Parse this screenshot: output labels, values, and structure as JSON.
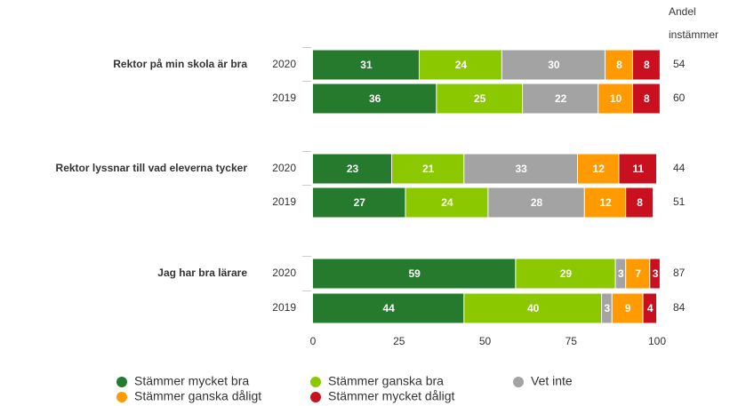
{
  "chart_data": {
    "type": "bar",
    "groups": [
      "Rektor på min skola är bra",
      "Rektor lyssnar till vad eleverna tycker",
      "Jag har bra lärare"
    ],
    "categories": [
      "2020",
      "2019",
      "2020",
      "2019",
      "2020",
      "2019"
    ],
    "series": [
      {
        "name": "Stämmer mycket bra",
        "color": "#267a2e",
        "values": [
          31,
          36,
          23,
          27,
          59,
          44
        ]
      },
      {
        "name": "Stämmer ganska bra",
        "color": "#8cc800",
        "values": [
          24,
          25,
          21,
          24,
          29,
          40
        ]
      },
      {
        "name": "Vet inte",
        "color": "#a3a3a3",
        "values": [
          30,
          22,
          33,
          28,
          3,
          3
        ]
      },
      {
        "name": "Stämmer ganska dåligt",
        "color": "#ff9a00",
        "values": [
          8,
          10,
          12,
          12,
          7,
          9
        ]
      },
      {
        "name": "Stämmer mycket dåligt",
        "color": "#c8101e",
        "values": [
          8,
          8,
          11,
          8,
          3,
          4
        ]
      }
    ],
    "side_title": [
      "Andel",
      "instämmer"
    ],
    "side_values": [
      54,
      60,
      44,
      51,
      87,
      84
    ],
    "xlim": [
      0,
      100
    ],
    "xticks": [
      0,
      25,
      50,
      75,
      100
    ],
    "grid": false
  }
}
